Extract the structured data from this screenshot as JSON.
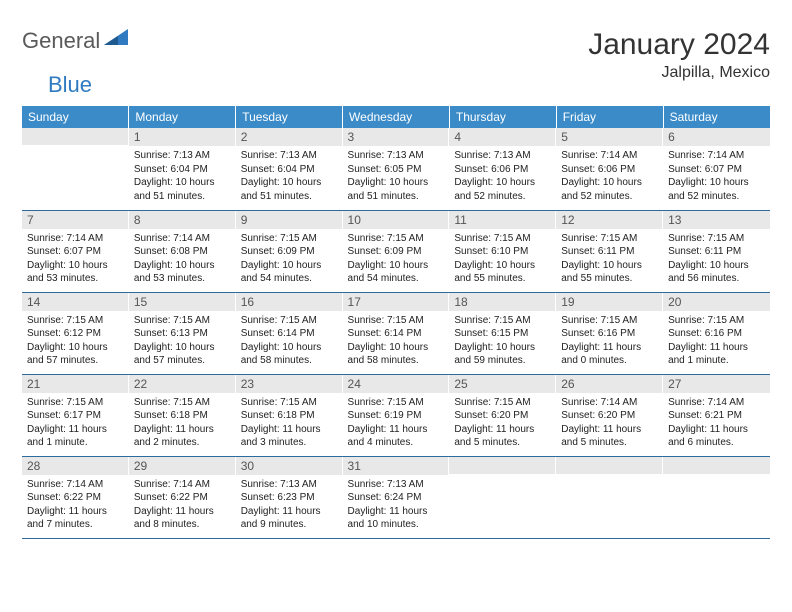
{
  "logo": {
    "text1": "General",
    "text2": "Blue"
  },
  "title": "January 2024",
  "location": "Jalpilla, Mexico",
  "colors": {
    "header_bg": "#3b8bc9",
    "header_text": "#ffffff",
    "daynum_bg": "#e8e8e8",
    "daynum_text": "#555555",
    "body_text": "#222222",
    "row_border": "#2f6a9e",
    "logo_gray": "#5a5a5a",
    "logo_blue": "#2f7ac0"
  },
  "weekdays": [
    "Sunday",
    "Monday",
    "Tuesday",
    "Wednesday",
    "Thursday",
    "Friday",
    "Saturday"
  ],
  "weeks": [
    [
      {
        "day": "",
        "lines": []
      },
      {
        "day": "1",
        "lines": [
          "Sunrise: 7:13 AM",
          "Sunset: 6:04 PM",
          "Daylight: 10 hours and 51 minutes."
        ]
      },
      {
        "day": "2",
        "lines": [
          "Sunrise: 7:13 AM",
          "Sunset: 6:04 PM",
          "Daylight: 10 hours and 51 minutes."
        ]
      },
      {
        "day": "3",
        "lines": [
          "Sunrise: 7:13 AM",
          "Sunset: 6:05 PM",
          "Daylight: 10 hours and 51 minutes."
        ]
      },
      {
        "day": "4",
        "lines": [
          "Sunrise: 7:13 AM",
          "Sunset: 6:06 PM",
          "Daylight: 10 hours and 52 minutes."
        ]
      },
      {
        "day": "5",
        "lines": [
          "Sunrise: 7:14 AM",
          "Sunset: 6:06 PM",
          "Daylight: 10 hours and 52 minutes."
        ]
      },
      {
        "day": "6",
        "lines": [
          "Sunrise: 7:14 AM",
          "Sunset: 6:07 PM",
          "Daylight: 10 hours and 52 minutes."
        ]
      }
    ],
    [
      {
        "day": "7",
        "lines": [
          "Sunrise: 7:14 AM",
          "Sunset: 6:07 PM",
          "Daylight: 10 hours and 53 minutes."
        ]
      },
      {
        "day": "8",
        "lines": [
          "Sunrise: 7:14 AM",
          "Sunset: 6:08 PM",
          "Daylight: 10 hours and 53 minutes."
        ]
      },
      {
        "day": "9",
        "lines": [
          "Sunrise: 7:15 AM",
          "Sunset: 6:09 PM",
          "Daylight: 10 hours and 54 minutes."
        ]
      },
      {
        "day": "10",
        "lines": [
          "Sunrise: 7:15 AM",
          "Sunset: 6:09 PM",
          "Daylight: 10 hours and 54 minutes."
        ]
      },
      {
        "day": "11",
        "lines": [
          "Sunrise: 7:15 AM",
          "Sunset: 6:10 PM",
          "Daylight: 10 hours and 55 minutes."
        ]
      },
      {
        "day": "12",
        "lines": [
          "Sunrise: 7:15 AM",
          "Sunset: 6:11 PM",
          "Daylight: 10 hours and 55 minutes."
        ]
      },
      {
        "day": "13",
        "lines": [
          "Sunrise: 7:15 AM",
          "Sunset: 6:11 PM",
          "Daylight: 10 hours and 56 minutes."
        ]
      }
    ],
    [
      {
        "day": "14",
        "lines": [
          "Sunrise: 7:15 AM",
          "Sunset: 6:12 PM",
          "Daylight: 10 hours and 57 minutes."
        ]
      },
      {
        "day": "15",
        "lines": [
          "Sunrise: 7:15 AM",
          "Sunset: 6:13 PM",
          "Daylight: 10 hours and 57 minutes."
        ]
      },
      {
        "day": "16",
        "lines": [
          "Sunrise: 7:15 AM",
          "Sunset: 6:14 PM",
          "Daylight: 10 hours and 58 minutes."
        ]
      },
      {
        "day": "17",
        "lines": [
          "Sunrise: 7:15 AM",
          "Sunset: 6:14 PM",
          "Daylight: 10 hours and 58 minutes."
        ]
      },
      {
        "day": "18",
        "lines": [
          "Sunrise: 7:15 AM",
          "Sunset: 6:15 PM",
          "Daylight: 10 hours and 59 minutes."
        ]
      },
      {
        "day": "19",
        "lines": [
          "Sunrise: 7:15 AM",
          "Sunset: 6:16 PM",
          "Daylight: 11 hours and 0 minutes."
        ]
      },
      {
        "day": "20",
        "lines": [
          "Sunrise: 7:15 AM",
          "Sunset: 6:16 PM",
          "Daylight: 11 hours and 1 minute."
        ]
      }
    ],
    [
      {
        "day": "21",
        "lines": [
          "Sunrise: 7:15 AM",
          "Sunset: 6:17 PM",
          "Daylight: 11 hours and 1 minute."
        ]
      },
      {
        "day": "22",
        "lines": [
          "Sunrise: 7:15 AM",
          "Sunset: 6:18 PM",
          "Daylight: 11 hours and 2 minutes."
        ]
      },
      {
        "day": "23",
        "lines": [
          "Sunrise: 7:15 AM",
          "Sunset: 6:18 PM",
          "Daylight: 11 hours and 3 minutes."
        ]
      },
      {
        "day": "24",
        "lines": [
          "Sunrise: 7:15 AM",
          "Sunset: 6:19 PM",
          "Daylight: 11 hours and 4 minutes."
        ]
      },
      {
        "day": "25",
        "lines": [
          "Sunrise: 7:15 AM",
          "Sunset: 6:20 PM",
          "Daylight: 11 hours and 5 minutes."
        ]
      },
      {
        "day": "26",
        "lines": [
          "Sunrise: 7:14 AM",
          "Sunset: 6:20 PM",
          "Daylight: 11 hours and 5 minutes."
        ]
      },
      {
        "day": "27",
        "lines": [
          "Sunrise: 7:14 AM",
          "Sunset: 6:21 PM",
          "Daylight: 11 hours and 6 minutes."
        ]
      }
    ],
    [
      {
        "day": "28",
        "lines": [
          "Sunrise: 7:14 AM",
          "Sunset: 6:22 PM",
          "Daylight: 11 hours and 7 minutes."
        ]
      },
      {
        "day": "29",
        "lines": [
          "Sunrise: 7:14 AM",
          "Sunset: 6:22 PM",
          "Daylight: 11 hours and 8 minutes."
        ]
      },
      {
        "day": "30",
        "lines": [
          "Sunrise: 7:13 AM",
          "Sunset: 6:23 PM",
          "Daylight: 11 hours and 9 minutes."
        ]
      },
      {
        "day": "31",
        "lines": [
          "Sunrise: 7:13 AM",
          "Sunset: 6:24 PM",
          "Daylight: 11 hours and 10 minutes."
        ]
      },
      {
        "day": "",
        "lines": []
      },
      {
        "day": "",
        "lines": []
      },
      {
        "day": "",
        "lines": []
      }
    ]
  ]
}
